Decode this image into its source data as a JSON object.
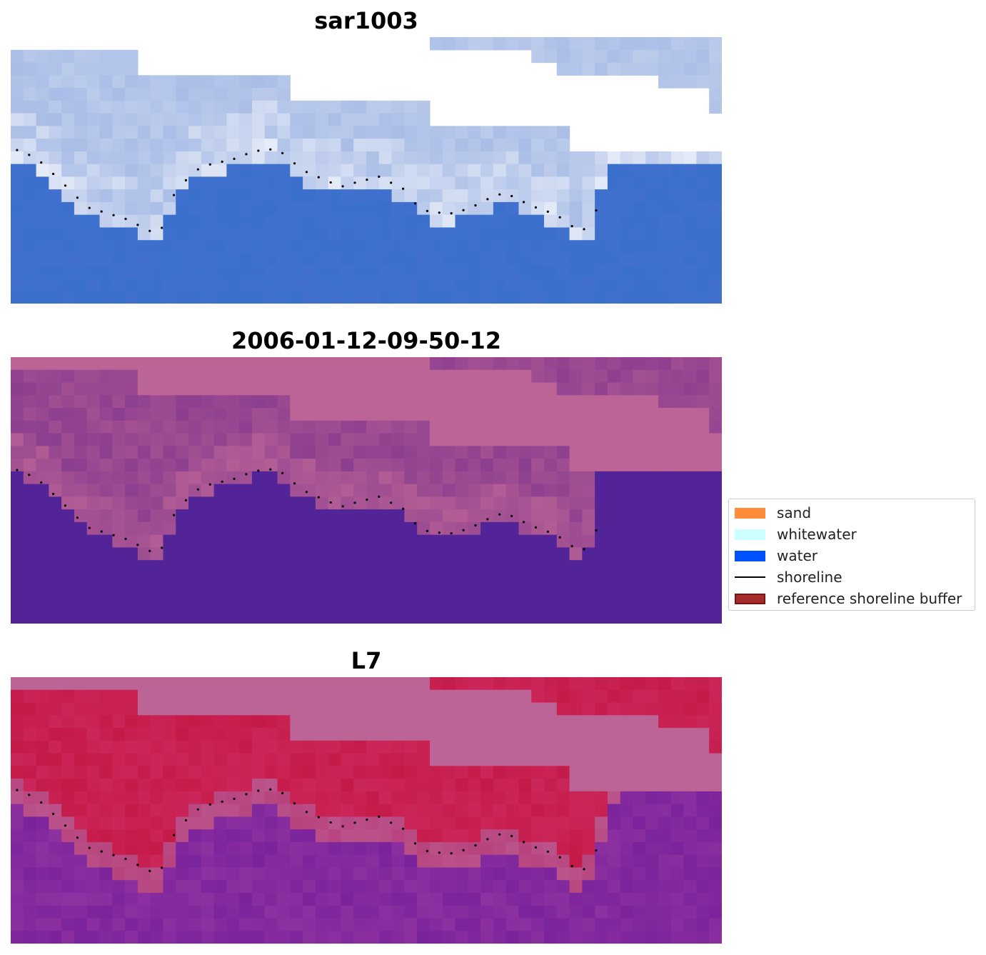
{
  "panels": [
    {
      "id": "rgb",
      "title": "sar1003"
    },
    {
      "id": "classification",
      "title": "2006-01-12-09-50-12"
    },
    {
      "id": "index",
      "title": "L7"
    }
  ],
  "legend": {
    "items": [
      {
        "label": "sand",
        "kind": "patch",
        "color": "#ff8c3a"
      },
      {
        "label": "whitewater",
        "kind": "patch",
        "color": "#ccffff"
      },
      {
        "label": "water",
        "kind": "patch",
        "color": "#0052ff"
      },
      {
        "label": "shoreline",
        "kind": "line",
        "color": "#000000"
      },
      {
        "label": "reference shoreline buffer",
        "kind": "patch",
        "color": "#a52a2a",
        "edge": "#7a1414"
      }
    ]
  },
  "colors": {
    "masked_pink": "#bd6497",
    "water_purple": "#532398",
    "index_red": "#c41a48",
    "index_purple": "#7b239b",
    "rgb_water": "#3a70cc",
    "rgb_light": "#a9bde6",
    "shoreline": "#000000"
  }
}
